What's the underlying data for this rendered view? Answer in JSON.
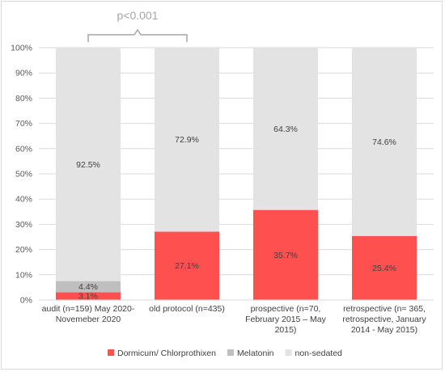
{
  "chart_data": {
    "type": "bar",
    "stacked": true,
    "percent_stacked": true,
    "categories": [
      [
        "audit (n=159) May 2020-",
        "Novemeber 2020"
      ],
      [
        "old protocol (n=435)"
      ],
      [
        "prospective (n=70,",
        "February 2015 – May",
        "2015)"
      ],
      [
        "retrospective (n= 365,",
        "retrospective, January",
        "2014 - May 2015)"
      ]
    ],
    "series": [
      {
        "name": "Dormicum/ Chlorprothixen",
        "color": "#ff5050",
        "values": [
          3.1,
          27.1,
          35.7,
          25.4
        ],
        "labels": [
          "3.1%",
          "27.1%",
          "35.7%",
          "25.4%"
        ]
      },
      {
        "name": "Melatonin",
        "color": "#bfbfbf",
        "values": [
          4.4,
          0,
          0,
          0
        ],
        "labels": [
          "4.4%",
          "",
          "",
          ""
        ]
      },
      {
        "name": "non-sedated",
        "color": "#e3e3e3",
        "values": [
          92.5,
          72.9,
          64.3,
          74.6
        ],
        "labels": [
          "92.5%",
          "72.9%",
          "64.3%",
          "74.6%"
        ]
      }
    ],
    "yticks": [
      "0%",
      "10%",
      "20%",
      "30%",
      "40%",
      "50%",
      "60%",
      "70%",
      "80%",
      "90%",
      "100%"
    ],
    "ylim": [
      0,
      100
    ],
    "grid": true,
    "legend": "bottom",
    "annotation": {
      "text": "p<0.001",
      "from_category": 0,
      "to_category": 1
    }
  }
}
